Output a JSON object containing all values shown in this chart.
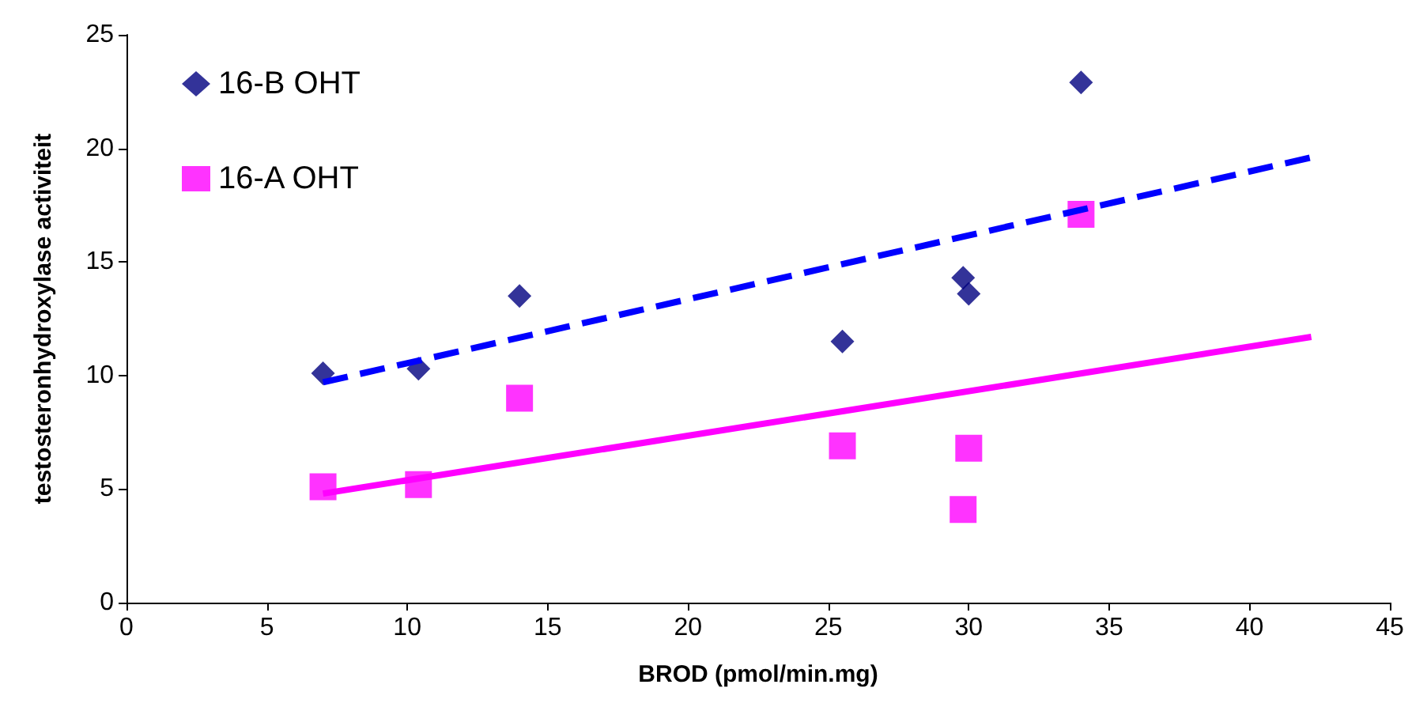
{
  "chart_data": {
    "type": "scatter",
    "xlabel": "BROD (pmol/min.mg)",
    "ylabel": "testosteronhydroxylase activiteit",
    "xlim": [
      0,
      45
    ],
    "xticks": [
      0,
      5,
      10,
      15,
      20,
      25,
      30,
      35,
      40,
      45
    ],
    "ylim": [
      0,
      25
    ],
    "yticks": [
      0,
      5,
      10,
      15,
      20,
      25
    ],
    "grid": false,
    "legend": "top left",
    "series": [
      {
        "name": "16-B OHT",
        "marker": "diamond",
        "color": "#000080",
        "x": [
          7.0,
          10.4,
          14.0,
          25.5,
          29.8,
          30.0,
          34.0
        ],
        "values": [
          10.1,
          10.3,
          13.5,
          11.5,
          14.3,
          13.6,
          22.9
        ]
      },
      {
        "name": "16-A OHT",
        "marker": "square",
        "color": "#ff00ff",
        "x": [
          7.0,
          10.4,
          14.0,
          25.5,
          29.8,
          30.0,
          34.0
        ],
        "values": [
          5.1,
          5.2,
          9.0,
          6.9,
          4.1,
          6.8,
          17.1
        ]
      },
      {
        "type": "line",
        "line_style": "dashed",
        "marker": "none",
        "color": "#0000ff",
        "x": [
          7.0,
          42.2
        ],
        "values": [
          9.7,
          19.6
        ]
      },
      {
        "type": "line",
        "line_style": "solid",
        "marker": "none",
        "color": "#ff00ff",
        "x": [
          7.0,
          42.2
        ],
        "values": [
          4.8,
          11.7
        ]
      }
    ]
  }
}
